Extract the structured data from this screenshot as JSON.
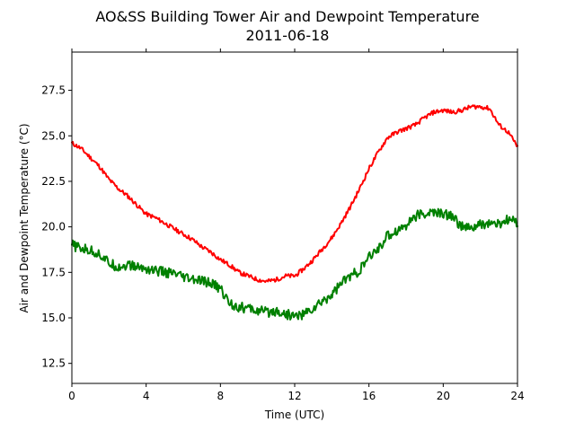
{
  "chart_data": {
    "type": "line",
    "title": "AO&SS Building Tower Air and Dewpoint Temperature",
    "subtitle": "2011-06-18",
    "xlabel": "Time (UTC)",
    "ylabel": "Air and Dewpoint Temperature (°C)",
    "xlim": [
      0,
      24
    ],
    "ylim": [
      11.4,
      29.6
    ],
    "xticks": [
      0,
      4,
      8,
      12,
      16,
      20,
      24
    ],
    "xtick_labels": [
      "0",
      "4",
      "8",
      "12",
      "16",
      "20",
      "24"
    ],
    "yticks": [
      12.5,
      15.0,
      17.5,
      20.0,
      22.5,
      25.0,
      27.5
    ],
    "ytick_labels": [
      "12.5",
      "15.0",
      "17.5",
      "20.0",
      "22.5",
      "25.0",
      "27.5"
    ],
    "grid": false,
    "series": [
      {
        "color": "#ff0000",
        "x": [
          0,
          0.5,
          1,
          1.5,
          2,
          2.5,
          3,
          3.5,
          4,
          4.5,
          5,
          5.5,
          6,
          6.5,
          7,
          7.5,
          8,
          8.5,
          9,
          9.5,
          10,
          10.5,
          11,
          11.5,
          12,
          12.5,
          13,
          13.5,
          14,
          14.5,
          15,
          15.5,
          16,
          16.5,
          17,
          17.5,
          18,
          18.5,
          19,
          19.5,
          20,
          20.5,
          21,
          21.5,
          22,
          22.5,
          23,
          23.5,
          24
        ],
        "values": [
          24.6,
          24.3,
          23.8,
          23.3,
          22.6,
          22.1,
          21.7,
          21.2,
          20.7,
          20.5,
          20.2,
          19.9,
          19.6,
          19.3,
          18.9,
          18.6,
          18.2,
          17.9,
          17.5,
          17.3,
          17.1,
          17.0,
          17.1,
          17.3,
          17.3,
          17.7,
          18.2,
          18.8,
          19.4,
          20.2,
          21.1,
          22.1,
          23.2,
          24.1,
          24.9,
          25.2,
          25.4,
          25.6,
          26.0,
          26.3,
          26.4,
          26.3,
          26.4,
          26.6,
          26.6,
          26.5,
          25.6,
          25.2,
          24.4
        ]
      },
      {
        "color": "#008000",
        "x": [
          0,
          0.5,
          1,
          1.5,
          2,
          2.5,
          3,
          3.5,
          4,
          4.5,
          5,
          5.5,
          6,
          6.5,
          7,
          7.5,
          8,
          8.5,
          9,
          9.5,
          10,
          10.5,
          11,
          11.5,
          12,
          12.5,
          13,
          13.5,
          14,
          14.5,
          15,
          15.5,
          16,
          16.5,
          17,
          17.5,
          18,
          18.5,
          19,
          19.5,
          20,
          20.5,
          21,
          21.5,
          22,
          22.5,
          23,
          23.5,
          24
        ],
        "values": [
          19.0,
          18.8,
          18.7,
          18.5,
          18.0,
          17.8,
          17.9,
          17.8,
          17.7,
          17.6,
          17.5,
          17.4,
          17.2,
          17.1,
          17.0,
          16.9,
          16.6,
          15.8,
          15.6,
          15.5,
          15.4,
          15.3,
          15.4,
          15.2,
          15.1,
          15.2,
          15.5,
          15.9,
          16.3,
          16.9,
          17.3,
          17.6,
          18.3,
          18.8,
          19.5,
          19.8,
          20.1,
          20.6,
          20.7,
          20.8,
          20.7,
          20.6,
          20.0,
          19.9,
          20.1,
          20.2,
          20.1,
          20.4,
          20.2
        ]
      }
    ]
  }
}
